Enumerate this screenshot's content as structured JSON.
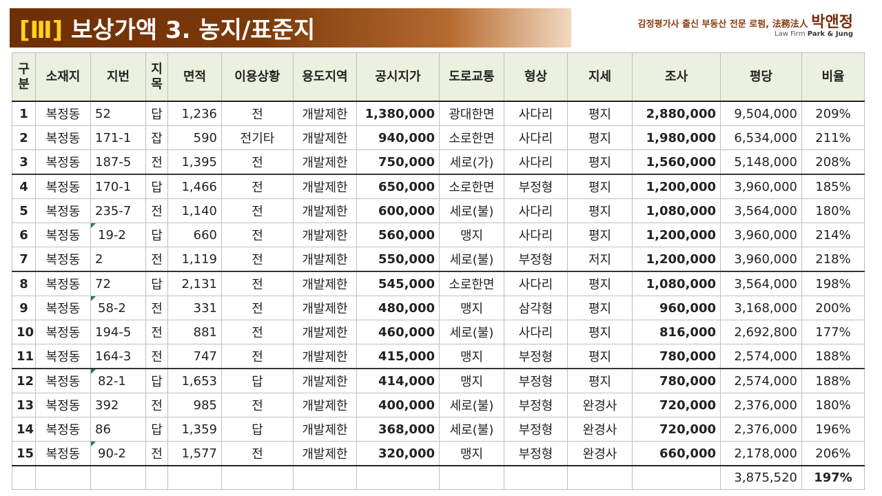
{
  "header": {
    "tag": "[Ⅲ]",
    "title": "보상가액 3. 농지/표준지"
  },
  "brand": {
    "tagline": "감정평가사 출신 부동산 전문 로펌,",
    "firm_hanja": "法務法人",
    "firm_name": "박앤정",
    "firm_en_prefix": "Law Firm",
    "firm_en_name": "Park & Jung"
  },
  "columns": [
    "구분",
    "소재지",
    "지번",
    "지목",
    "면적",
    "이용상황",
    "용도지역",
    "공시지가",
    "도로교통",
    "형상",
    "지세",
    "조사",
    "평당",
    "비율"
  ],
  "rows": [
    {
      "no": "1",
      "loc": "복정동",
      "lot": "52",
      "cat": "답",
      "area": "1,236",
      "use": "전",
      "zone": "개발제한",
      "price": "1,380,000",
      "road": "광대한면",
      "shape": "사다리",
      "terrain": "평지",
      "survey": "2,880,000",
      "per_pyeong": "9,504,000",
      "ratio": "209%",
      "mark": false,
      "group_top": false
    },
    {
      "no": "2",
      "loc": "복정동",
      "lot": "171-1",
      "cat": "잡",
      "area": "590",
      "use": "전기타",
      "zone": "개발제한",
      "price": "940,000",
      "road": "소로한면",
      "shape": "사다리",
      "terrain": "평지",
      "survey": "1,980,000",
      "per_pyeong": "6,534,000",
      "ratio": "211%",
      "mark": false,
      "group_top": false
    },
    {
      "no": "3",
      "loc": "복정동",
      "lot": "187-5",
      "cat": "전",
      "area": "1,395",
      "use": "전",
      "zone": "개발제한",
      "price": "750,000",
      "road": "세로(가)",
      "shape": "사다리",
      "terrain": "평지",
      "survey": "1,560,000",
      "per_pyeong": "5,148,000",
      "ratio": "208%",
      "mark": false,
      "group_top": false
    },
    {
      "no": "4",
      "loc": "복정동",
      "lot": "170-1",
      "cat": "답",
      "area": "1,466",
      "use": "전",
      "zone": "개발제한",
      "price": "650,000",
      "road": "소로한면",
      "shape": "부정형",
      "terrain": "평지",
      "survey": "1,200,000",
      "per_pyeong": "3,960,000",
      "ratio": "185%",
      "mark": false,
      "group_top": true
    },
    {
      "no": "5",
      "loc": "복정동",
      "lot": "235-7",
      "cat": "전",
      "area": "1,140",
      "use": "전",
      "zone": "개발제한",
      "price": "600,000",
      "road": "세로(불)",
      "shape": "사다리",
      "terrain": "평지",
      "survey": "1,080,000",
      "per_pyeong": "3,564,000",
      "ratio": "180%",
      "mark": false,
      "group_top": false
    },
    {
      "no": "6",
      "loc": "복정동",
      "lot": "19-2",
      "cat": "답",
      "area": "660",
      "use": "전",
      "zone": "개발제한",
      "price": "560,000",
      "road": "맹지",
      "shape": "사다리",
      "terrain": "평지",
      "survey": "1,200,000",
      "per_pyeong": "3,960,000",
      "ratio": "214%",
      "mark": true,
      "group_top": false
    },
    {
      "no": "7",
      "loc": "복정동",
      "lot": "2",
      "cat": "전",
      "area": "1,119",
      "use": "전",
      "zone": "개발제한",
      "price": "550,000",
      "road": "세로(불)",
      "shape": "부정형",
      "terrain": "저지",
      "survey": "1,200,000",
      "per_pyeong": "3,960,000",
      "ratio": "218%",
      "mark": false,
      "group_top": false
    },
    {
      "no": "8",
      "loc": "복정동",
      "lot": "72",
      "cat": "답",
      "area": "2,131",
      "use": "전",
      "zone": "개발제한",
      "price": "545,000",
      "road": "소로한면",
      "shape": "사다리",
      "terrain": "평지",
      "survey": "1,080,000",
      "per_pyeong": "3,564,000",
      "ratio": "198%",
      "mark": false,
      "group_top": true
    },
    {
      "no": "9",
      "loc": "복정동",
      "lot": "58-2",
      "cat": "전",
      "area": "331",
      "use": "전",
      "zone": "개발제한",
      "price": "480,000",
      "road": "맹지",
      "shape": "삼각형",
      "terrain": "평지",
      "survey": "960,000",
      "per_pyeong": "3,168,000",
      "ratio": "200%",
      "mark": true,
      "group_top": false
    },
    {
      "no": "10",
      "loc": "복정동",
      "lot": "194-5",
      "cat": "전",
      "area": "881",
      "use": "전",
      "zone": "개발제한",
      "price": "460,000",
      "road": "세로(불)",
      "shape": "사다리",
      "terrain": "평지",
      "survey": "816,000",
      "per_pyeong": "2,692,800",
      "ratio": "177%",
      "mark": false,
      "group_top": false
    },
    {
      "no": "11",
      "loc": "복정동",
      "lot": "164-3",
      "cat": "전",
      "area": "747",
      "use": "전",
      "zone": "개발제한",
      "price": "415,000",
      "road": "맹지",
      "shape": "부정형",
      "terrain": "평지",
      "survey": "780,000",
      "per_pyeong": "2,574,000",
      "ratio": "188%",
      "mark": false,
      "group_top": false
    },
    {
      "no": "12",
      "loc": "복정동",
      "lot": "82-1",
      "cat": "답",
      "area": "1,653",
      "use": "답",
      "zone": "개발제한",
      "price": "414,000",
      "road": "맹지",
      "shape": "부정형",
      "terrain": "평지",
      "survey": "780,000",
      "per_pyeong": "2,574,000",
      "ratio": "188%",
      "mark": true,
      "group_top": true
    },
    {
      "no": "13",
      "loc": "복정동",
      "lot": "392",
      "cat": "전",
      "area": "985",
      "use": "전",
      "zone": "개발제한",
      "price": "400,000",
      "road": "세로(불)",
      "shape": "부정형",
      "terrain": "완경사",
      "survey": "720,000",
      "per_pyeong": "2,376,000",
      "ratio": "180%",
      "mark": false,
      "group_top": false
    },
    {
      "no": "14",
      "loc": "복정동",
      "lot": "86",
      "cat": "답",
      "area": "1,359",
      "use": "답",
      "zone": "개발제한",
      "price": "368,000",
      "road": "세로(불)",
      "shape": "부정형",
      "terrain": "완경사",
      "survey": "720,000",
      "per_pyeong": "2,376,000",
      "ratio": "196%",
      "mark": false,
      "group_top": false
    },
    {
      "no": "15",
      "loc": "복정동",
      "lot": "90-2",
      "cat": "전",
      "area": "1,577",
      "use": "전",
      "zone": "개발제한",
      "price": "320,000",
      "road": "맹지",
      "shape": "부정형",
      "terrain": "완경사",
      "survey": "660,000",
      "per_pyeong": "2,178,000",
      "ratio": "206%",
      "mark": true,
      "group_top": false
    }
  ],
  "summary": {
    "avg_per_pyeong": "3,875,520",
    "avg_ratio": "197%"
  }
}
